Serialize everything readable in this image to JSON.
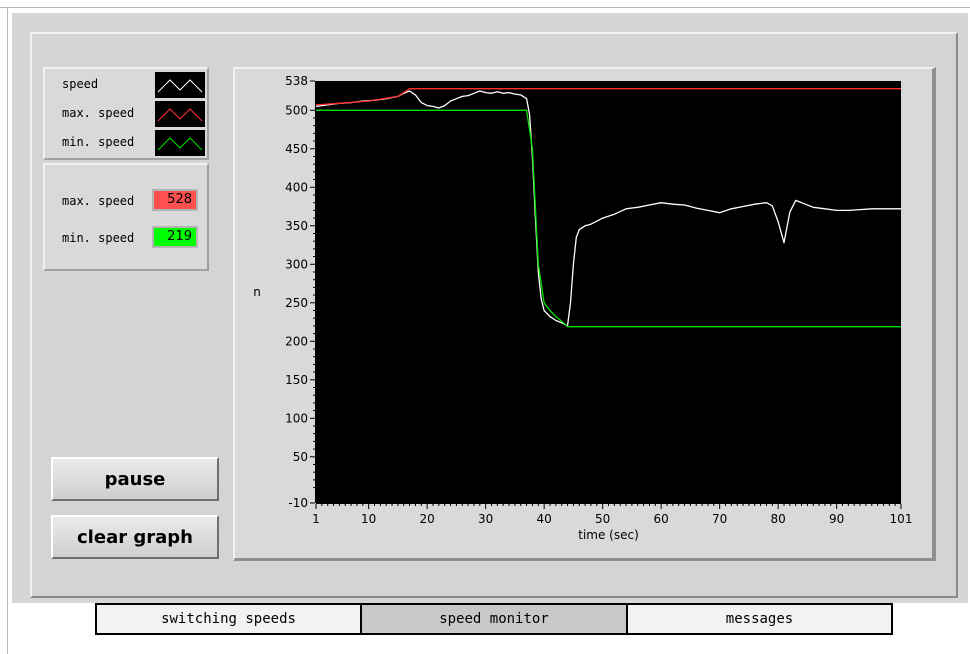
{
  "legend": {
    "items": [
      {
        "label": "speed",
        "color": "#ffffff"
      },
      {
        "label": "max. speed",
        "color": "#ff3030"
      },
      {
        "label": "min. speed",
        "color": "#00e000"
      }
    ]
  },
  "limits": {
    "max_label": "max. speed",
    "max_value": "528",
    "max_color": "#ff5050",
    "min_label": "min. speed",
    "min_value": "219",
    "min_color": "#00ff00"
  },
  "buttons": {
    "pause_label": "pause",
    "clear_label": "clear graph"
  },
  "tabs": [
    {
      "label": "switching speeds",
      "selected": false
    },
    {
      "label": "speed monitor",
      "selected": true
    },
    {
      "label": "messages",
      "selected": false
    }
  ],
  "chart_data": {
    "type": "line",
    "xlabel": "time (sec)",
    "ylabel": "n",
    "xlim": [
      1,
      101
    ],
    "ylim": [
      -10,
      538
    ],
    "x_ticks": [
      1,
      10,
      20,
      30,
      40,
      50,
      60,
      70,
      80,
      90,
      101
    ],
    "y_ticks": [
      538,
      500,
      450,
      400,
      350,
      300,
      250,
      200,
      150,
      100,
      50,
      -10
    ],
    "background": "#000000",
    "grid": false,
    "series": [
      {
        "name": "speed",
        "color": "#ffffff",
        "x": [
          1,
          3,
          5,
          7,
          9,
          11,
          13,
          15,
          16,
          17,
          18,
          19,
          20,
          21,
          22,
          23,
          24,
          25,
          26,
          27,
          28,
          29,
          30,
          31,
          32,
          33,
          34,
          35,
          36,
          37,
          37.5,
          38,
          38.5,
          39,
          39.5,
          40,
          41,
          42,
          43,
          44,
          44.5,
          45,
          45.5,
          46,
          47,
          48,
          49,
          50,
          52,
          54,
          56,
          58,
          60,
          62,
          64,
          66,
          68,
          70,
          72,
          74,
          76,
          78,
          79,
          80,
          81,
          82,
          83,
          84,
          86,
          88,
          90,
          92,
          94,
          96,
          98,
          101
        ],
        "y": [
          505,
          507,
          509,
          510,
          512,
          513,
          515,
          518,
          522,
          525,
          520,
          510,
          506,
          505,
          503,
          506,
          512,
          515,
          518,
          519,
          522,
          525,
          523,
          522,
          524,
          522,
          523,
          521,
          520,
          515,
          495,
          440,
          360,
          290,
          255,
          240,
          232,
          227,
          224,
          220,
          250,
          300,
          335,
          345,
          350,
          352,
          356,
          360,
          365,
          372,
          374,
          377,
          380,
          378,
          377,
          373,
          370,
          367,
          372,
          375,
          378,
          380,
          376,
          355,
          328,
          368,
          383,
          380,
          374,
          372,
          370,
          370,
          371,
          372,
          372,
          372
        ]
      },
      {
        "name": "max. speed",
        "color": "#ff3030",
        "x": [
          1,
          5,
          10,
          15,
          17,
          101
        ],
        "y": [
          507,
          509,
          512,
          518,
          528,
          528
        ]
      },
      {
        "name": "min. speed",
        "color": "#00e000",
        "x": [
          1,
          21,
          23,
          37,
          38,
          39,
          40,
          41,
          42,
          43,
          44,
          101
        ],
        "y": [
          500,
          500,
          500,
          500,
          450,
          300,
          250,
          240,
          232,
          226,
          219,
          219
        ]
      }
    ]
  }
}
